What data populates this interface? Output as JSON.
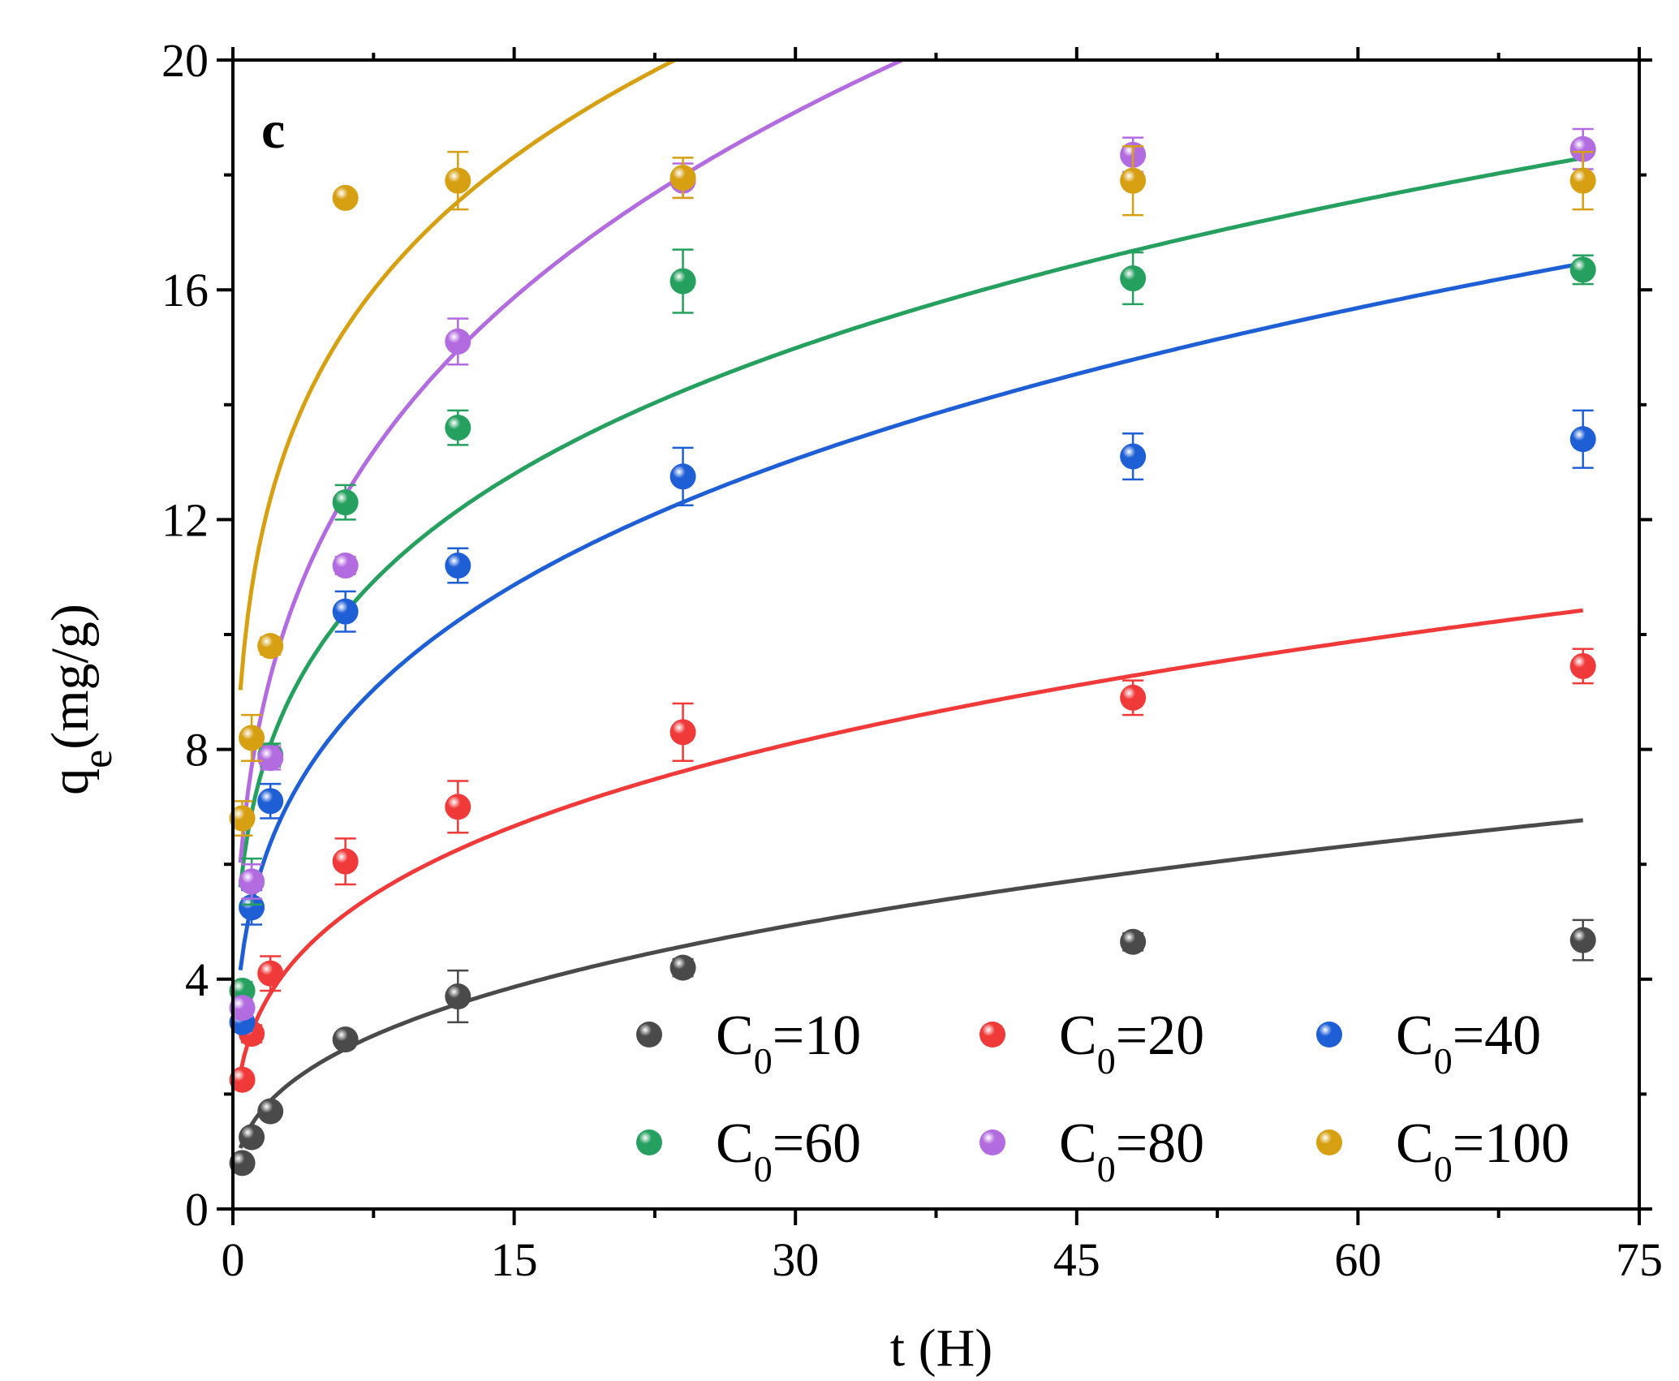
{
  "chart_data": {
    "type": "scatter",
    "panel_label": "c",
    "xlabel": "t (H)",
    "ylabel_main": "q",
    "ylabel_sub": "e",
    "ylabel_unit": "(mg/g)",
    "xlim": [
      0,
      75
    ],
    "ylim": [
      0,
      20
    ],
    "x_ticks": [
      0,
      15,
      30,
      45,
      60,
      75
    ],
    "y_ticks": [
      0,
      4,
      8,
      12,
      16,
      20
    ],
    "x_tick_labels": [
      "0",
      "15",
      "30",
      "45",
      "60",
      "75"
    ],
    "y_tick_labels": [
      "0",
      "4",
      "8",
      "12",
      "16",
      "20"
    ],
    "x": [
      0.5,
      1,
      2,
      6,
      12,
      24,
      48,
      72
    ],
    "legend_prefix": "C",
    "legend_sub": "0",
    "series": [
      {
        "name": "C0=10",
        "legend_value": "=10",
        "color": "#4a4a4a",
        "values": [
          0.8,
          1.25,
          1.7,
          2.95,
          3.7,
          4.2,
          4.65,
          4.68
        ],
        "errors": [
          0.05,
          0.1,
          0.1,
          0.1,
          0.45,
          0.15,
          0.15,
          0.35
        ],
        "fit": {
          "a": 1.47,
          "n": 0.357
        }
      },
      {
        "name": "C0=20",
        "legend_value": "=20",
        "color": "#f03a3a",
        "values": [
          2.25,
          3.05,
          4.1,
          6.05,
          7.0,
          8.3,
          8.9,
          9.45
        ],
        "errors": [
          0.1,
          0.15,
          0.3,
          0.4,
          0.45,
          0.5,
          0.3,
          0.3
        ],
        "fit": {
          "a": 3.08,
          "n": 0.285
        }
      },
      {
        "name": "C0=40",
        "legend_value": "=40",
        "color": "#1f5fd6",
        "values": [
          3.25,
          5.25,
          7.1,
          10.4,
          11.2,
          12.75,
          13.1,
          13.4
        ],
        "errors": [
          0.15,
          0.3,
          0.3,
          0.35,
          0.3,
          0.5,
          0.4,
          0.5
        ],
        "fit": {
          "a": 5.3,
          "n": 0.265
        }
      },
      {
        "name": "C0=60",
        "legend_value": "=60",
        "color": "#25a05e",
        "values": [
          3.8,
          5.7,
          7.9,
          12.3,
          13.6,
          16.15,
          16.2,
          16.35
        ],
        "errors": [
          0.15,
          0.4,
          0.2,
          0.3,
          0.3,
          0.55,
          0.45,
          0.25
        ],
        "fit": {
          "a": 6.9,
          "n": 0.228
        }
      },
      {
        "name": "C0=80",
        "legend_value": "=80",
        "color": "#b36be0",
        "values": [
          3.5,
          5.7,
          7.85,
          11.2,
          15.1,
          17.9,
          18.35,
          18.45
        ],
        "errors": [
          0.15,
          0.3,
          0.2,
          0.15,
          0.4,
          0.3,
          0.3,
          0.35
        ],
        "fit": {
          "a": 7.7,
          "n": 0.267
        }
      },
      {
        "name": "C0=100",
        "legend_value": "=100",
        "color": "#d6a012",
        "values": [
          6.8,
          8.2,
          9.8,
          17.6,
          17.9,
          17.95,
          17.9,
          17.9
        ],
        "errors": [
          0.3,
          0.4,
          0.15,
          0.1,
          0.5,
          0.35,
          0.6,
          0.5
        ],
        "fit": {
          "a": 10.8,
          "n": 0.195
        }
      }
    ]
  }
}
